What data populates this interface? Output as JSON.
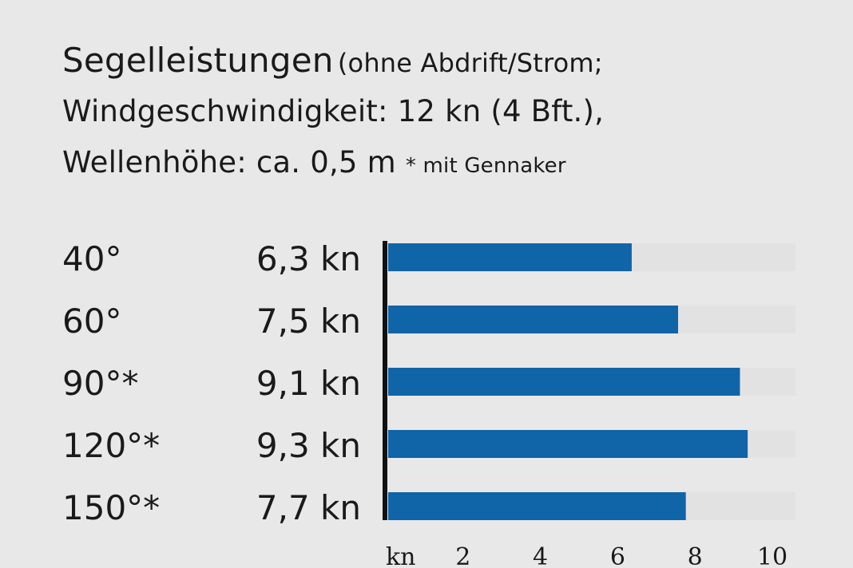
{
  "title": {
    "main": "Segelleistungen",
    "paren1": "(ohne Abdrift/Strom;",
    "line2": "Windgeschwindigkeit: 12 kn (4 Bft.),",
    "line3": "Wellenhöhe: ca. 0,5 m",
    "note": "* mit Gennaker"
  },
  "colors": {
    "bar": "#1064a8",
    "track": "#e2e2e3",
    "axis": "#111111"
  },
  "chart_data": {
    "type": "bar",
    "orientation": "horizontal",
    "categories": [
      "40°",
      "60°",
      "90°*",
      "120°*",
      "150°*"
    ],
    "values": [
      6.3,
      7.5,
      9.1,
      9.3,
      7.7
    ],
    "value_labels": [
      "6,3 kn",
      "7,5 kn",
      "9,1 kn",
      "9,3 kn",
      "7,7 kn"
    ],
    "xlabel": "kn",
    "xticks": [
      "2",
      "4",
      "6",
      "8",
      "10"
    ],
    "xlim": [
      0,
      10.5
    ],
    "grid": false
  }
}
